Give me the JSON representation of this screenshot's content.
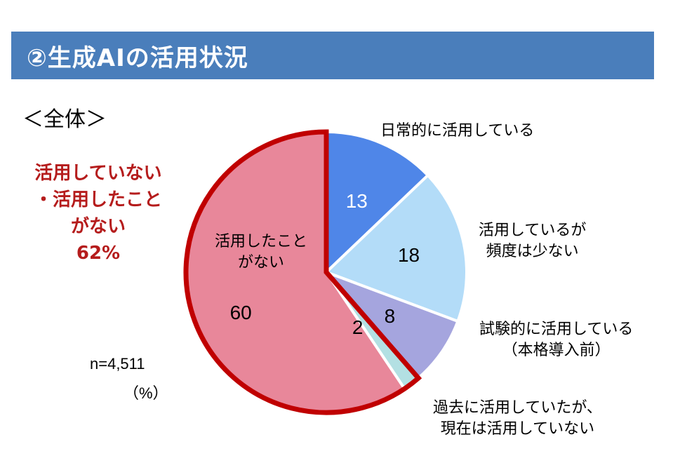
{
  "header": {
    "title": "②生成AIの活用状況",
    "background": "#4a7ebb"
  },
  "subtitle": "＜全体＞",
  "callout": {
    "lines": [
      "活用していない",
      "・活用したこと",
      "がない",
      "62%"
    ],
    "color": "#b51c1c"
  },
  "sample": {
    "n": "n=4,511",
    "unit": "（%）"
  },
  "chart_data": {
    "type": "pie",
    "title": "②生成AIの活用状況 ＜全体＞",
    "subtitle": "＜全体＞",
    "unit": "%",
    "n": 4511,
    "start_angle_deg": 0,
    "direction": "clockwise",
    "categories": [
      "日常的に活用している",
      "活用しているが頻度は少ない",
      "試験的に活用している（本格導入前）",
      "過去に活用していたが、現在は活用していない",
      "活用したことがない"
    ],
    "values": [
      13,
      18,
      8,
      2,
      60
    ],
    "colors": [
      "#4f86e8",
      "#b3dcf8",
      "#a5a5de",
      "#b3e0e3",
      "#e8879a"
    ],
    "label_colors": [
      "#ffffff",
      "#000000",
      "#000000",
      "#000000",
      "#000000"
    ],
    "highlight": {
      "categories": [
        "過去に活用していたが、現在は活用していない",
        "活用したことがない"
      ],
      "outline_color": "#c00000",
      "annotation": "活用していない・活用したことがない 62%"
    }
  },
  "labels": {
    "daily": [
      "日常的に活用している"
    ],
    "infrequent": [
      "活用しているが",
      "頻度は少ない"
    ],
    "trial": [
      "試験的に活用している",
      "（本格導入前）"
    ],
    "past": [
      "過去に活用していたが、",
      "現在は活用していない"
    ],
    "never_inside": [
      "活用したこと",
      "がない"
    ]
  }
}
